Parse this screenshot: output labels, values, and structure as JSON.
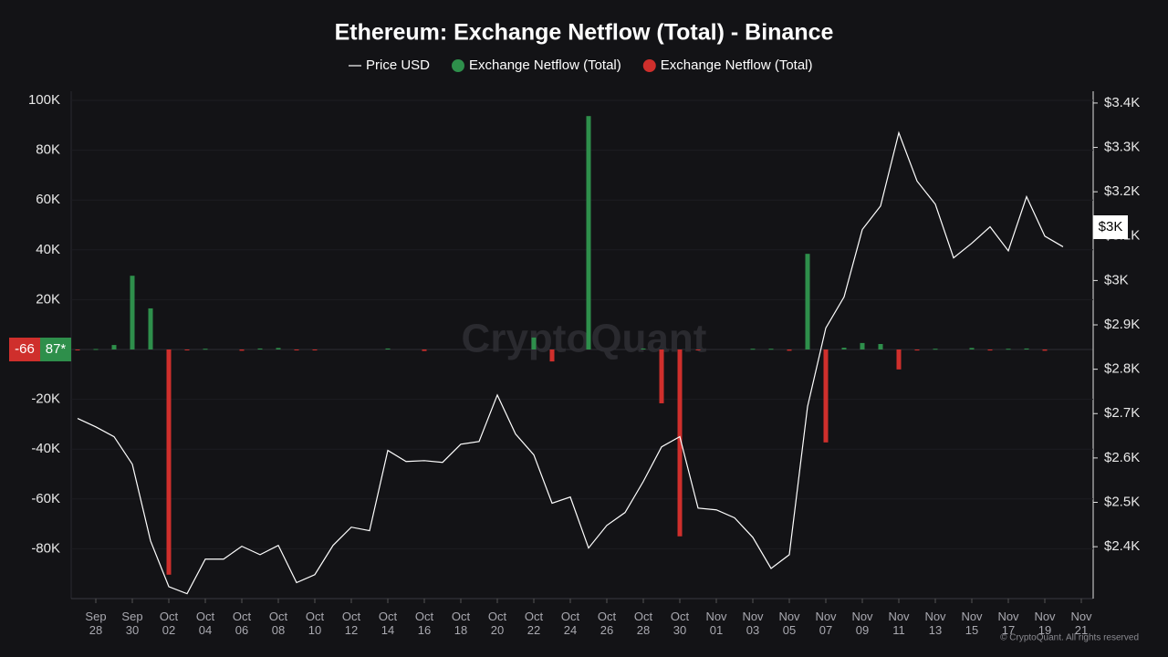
{
  "chart_data": {
    "type": "combo",
    "title": "Ethereum: Exchange Netflow (Total) - Binance",
    "watermark": "CryptoQuant",
    "copyright": "© CryptoQuant. All rights reserved",
    "cursor_labels": {
      "left_negative": "-66",
      "left_positive": "87*",
      "right": "$3K"
    },
    "categories": [
      null,
      "Sep 28",
      null,
      "Sep 30",
      null,
      "Oct 02",
      null,
      "Oct 04",
      null,
      "Oct 06",
      null,
      "Oct 08",
      null,
      "Oct 10",
      null,
      "Oct 12",
      null,
      "Oct 14",
      null,
      "Oct 16",
      null,
      "Oct 18",
      null,
      "Oct 20",
      null,
      "Oct 22",
      null,
      "Oct 24",
      null,
      "Oct 26",
      null,
      "Oct 28",
      null,
      "Oct 30",
      null,
      "Nov 01",
      null,
      "Nov 03",
      null,
      "Nov 05",
      null,
      "Nov 07",
      null,
      "Nov 09",
      null,
      "Nov 11",
      null,
      "Nov 13",
      null,
      "Nov 15",
      null,
      "Nov 17",
      null,
      "Nov 19",
      null,
      "Nov 21"
    ],
    "series": [
      {
        "name": "Price USD",
        "type": "line",
        "axis": "y2",
        "color": "#ffffff",
        "values": [
          2689,
          2670,
          2648,
          2586,
          2413,
          2310,
          2294,
          2372,
          2372,
          2401,
          2382,
          2403,
          2319,
          2337,
          2403,
          2444,
          2436,
          2617,
          2592,
          2594,
          2590,
          2631,
          2637,
          2742,
          2654,
          2607,
          2498,
          2512,
          2397,
          2448,
          2477,
          2547,
          2625,
          2648,
          2487,
          2483,
          2465,
          2421,
          2351,
          2382,
          2716,
          2893,
          2963,
          3115,
          3168,
          3333,
          3224,
          3172,
          3051,
          3084,
          3121,
          3067,
          3189,
          3100,
          3076,
          null
        ]
      },
      {
        "name": "Exchange Netflow (Total)",
        "type": "bar",
        "color": "#2e8f4b",
        "values": [
          null,
          200,
          1800,
          29600,
          16500,
          null,
          null,
          300,
          null,
          null,
          400,
          600,
          null,
          null,
          null,
          null,
          null,
          400,
          null,
          null,
          null,
          null,
          null,
          null,
          null,
          4800,
          null,
          null,
          93700,
          null,
          null,
          400,
          null,
          null,
          null,
          null,
          null,
          300,
          300,
          null,
          38400,
          null,
          700,
          2600,
          2200,
          null,
          null,
          300,
          null,
          600,
          null,
          300,
          400,
          null,
          null,
          null
        ]
      },
      {
        "name": "Exchange Netflow (Total)",
        "type": "bar",
        "color": "#cf2f2c",
        "values": [
          -300,
          null,
          null,
          null,
          null,
          -90400,
          -300,
          null,
          null,
          -500,
          null,
          null,
          -300,
          -300,
          null,
          null,
          null,
          null,
          null,
          -600,
          null,
          null,
          null,
          null,
          null,
          null,
          -4800,
          null,
          null,
          null,
          null,
          null,
          -21600,
          -75000,
          -300,
          null,
          null,
          null,
          null,
          -500,
          null,
          -37300,
          null,
          null,
          null,
          -8000,
          -400,
          null,
          null,
          null,
          -400,
          null,
          null,
          -500,
          null,
          null
        ]
      }
    ],
    "ylim": [
      -100000,
      100000
    ],
    "yticks": [
      {
        "value": 100000,
        "label": "100K"
      },
      {
        "value": 80000,
        "label": "80K"
      },
      {
        "value": 60000,
        "label": "60K"
      },
      {
        "value": 40000,
        "label": "40K"
      },
      {
        "value": 20000,
        "label": "20K"
      },
      {
        "value": -20000,
        "label": "-20K"
      },
      {
        "value": -40000,
        "label": "-40K"
      },
      {
        "value": -60000,
        "label": "-60K"
      },
      {
        "value": -80000,
        "label": "-80K"
      }
    ],
    "y2lim": [
      2283,
      3406
    ],
    "y2ticks": [
      {
        "value": 3400,
        "label": "$3.4K"
      },
      {
        "value": 3300,
        "label": "$3.3K"
      },
      {
        "value": 3200,
        "label": "$3.2K"
      },
      {
        "value": 3100,
        "label": "$3.1K"
      },
      {
        "value": 3000,
        "label": "$3K"
      },
      {
        "value": 2900,
        "label": "$2.9K"
      },
      {
        "value": 2800,
        "label": "$2.8K"
      },
      {
        "value": 2700,
        "label": "$2.7K"
      },
      {
        "value": 2600,
        "label": "$2.6K"
      },
      {
        "value": 2500,
        "label": "$2.5K"
      },
      {
        "value": 2400,
        "label": "$2.4K"
      }
    ],
    "grid": true
  }
}
